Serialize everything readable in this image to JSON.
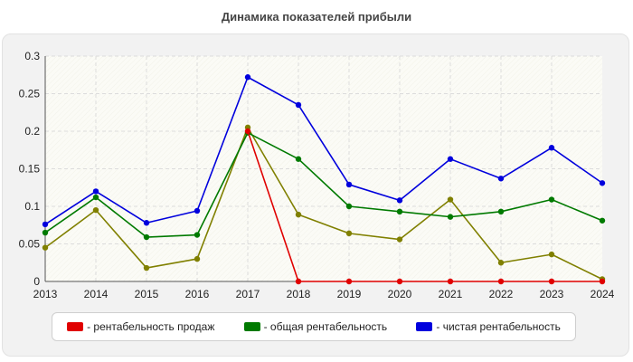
{
  "chart_data": {
    "type": "line",
    "title": "Динамика показателей прибыли",
    "xlabel": "",
    "ylabel": "",
    "categories": [
      "2013",
      "2014",
      "2015",
      "2016",
      "2017",
      "2018",
      "2019",
      "2020",
      "2021",
      "2022",
      "2023",
      "2024"
    ],
    "ylim": [
      0,
      0.3
    ],
    "yticks": [
      0,
      0.05,
      0.1,
      0.15,
      0.2,
      0.25,
      0.3
    ],
    "ytick_labels": [
      "0",
      "0.05",
      "0.1",
      "0.15",
      "0.2",
      "0.25",
      "0.3"
    ],
    "grid": true,
    "legend_position": "bottom",
    "series": [
      {
        "name": "- рентабельность продаж",
        "color": "#e00000",
        "values": [
          null,
          null,
          null,
          null,
          0.2,
          0,
          0,
          0,
          0,
          0,
          0,
          0
        ]
      },
      {
        "name": "- общая рентабельность",
        "color": "#007a00",
        "values": [
          0.065,
          0.112,
          0.059,
          0.062,
          0.198,
          0.163,
          0.1,
          0.093,
          0.086,
          0.093,
          0.109,
          0.081
        ]
      },
      {
        "name": "- чистая рентабельность",
        "color": "#0000dd",
        "values": [
          0.076,
          0.12,
          0.078,
          0.094,
          0.272,
          0.235,
          0.129,
          0.108,
          0.163,
          0.137,
          0.178,
          0.131
        ]
      },
      {
        "name": "",
        "color": "#808000",
        "values": [
          0.045,
          0.095,
          0.018,
          0.03,
          0.205,
          0.089,
          0.064,
          0.056,
          0.109,
          0.025,
          0.036,
          0.003
        ]
      }
    ]
  }
}
